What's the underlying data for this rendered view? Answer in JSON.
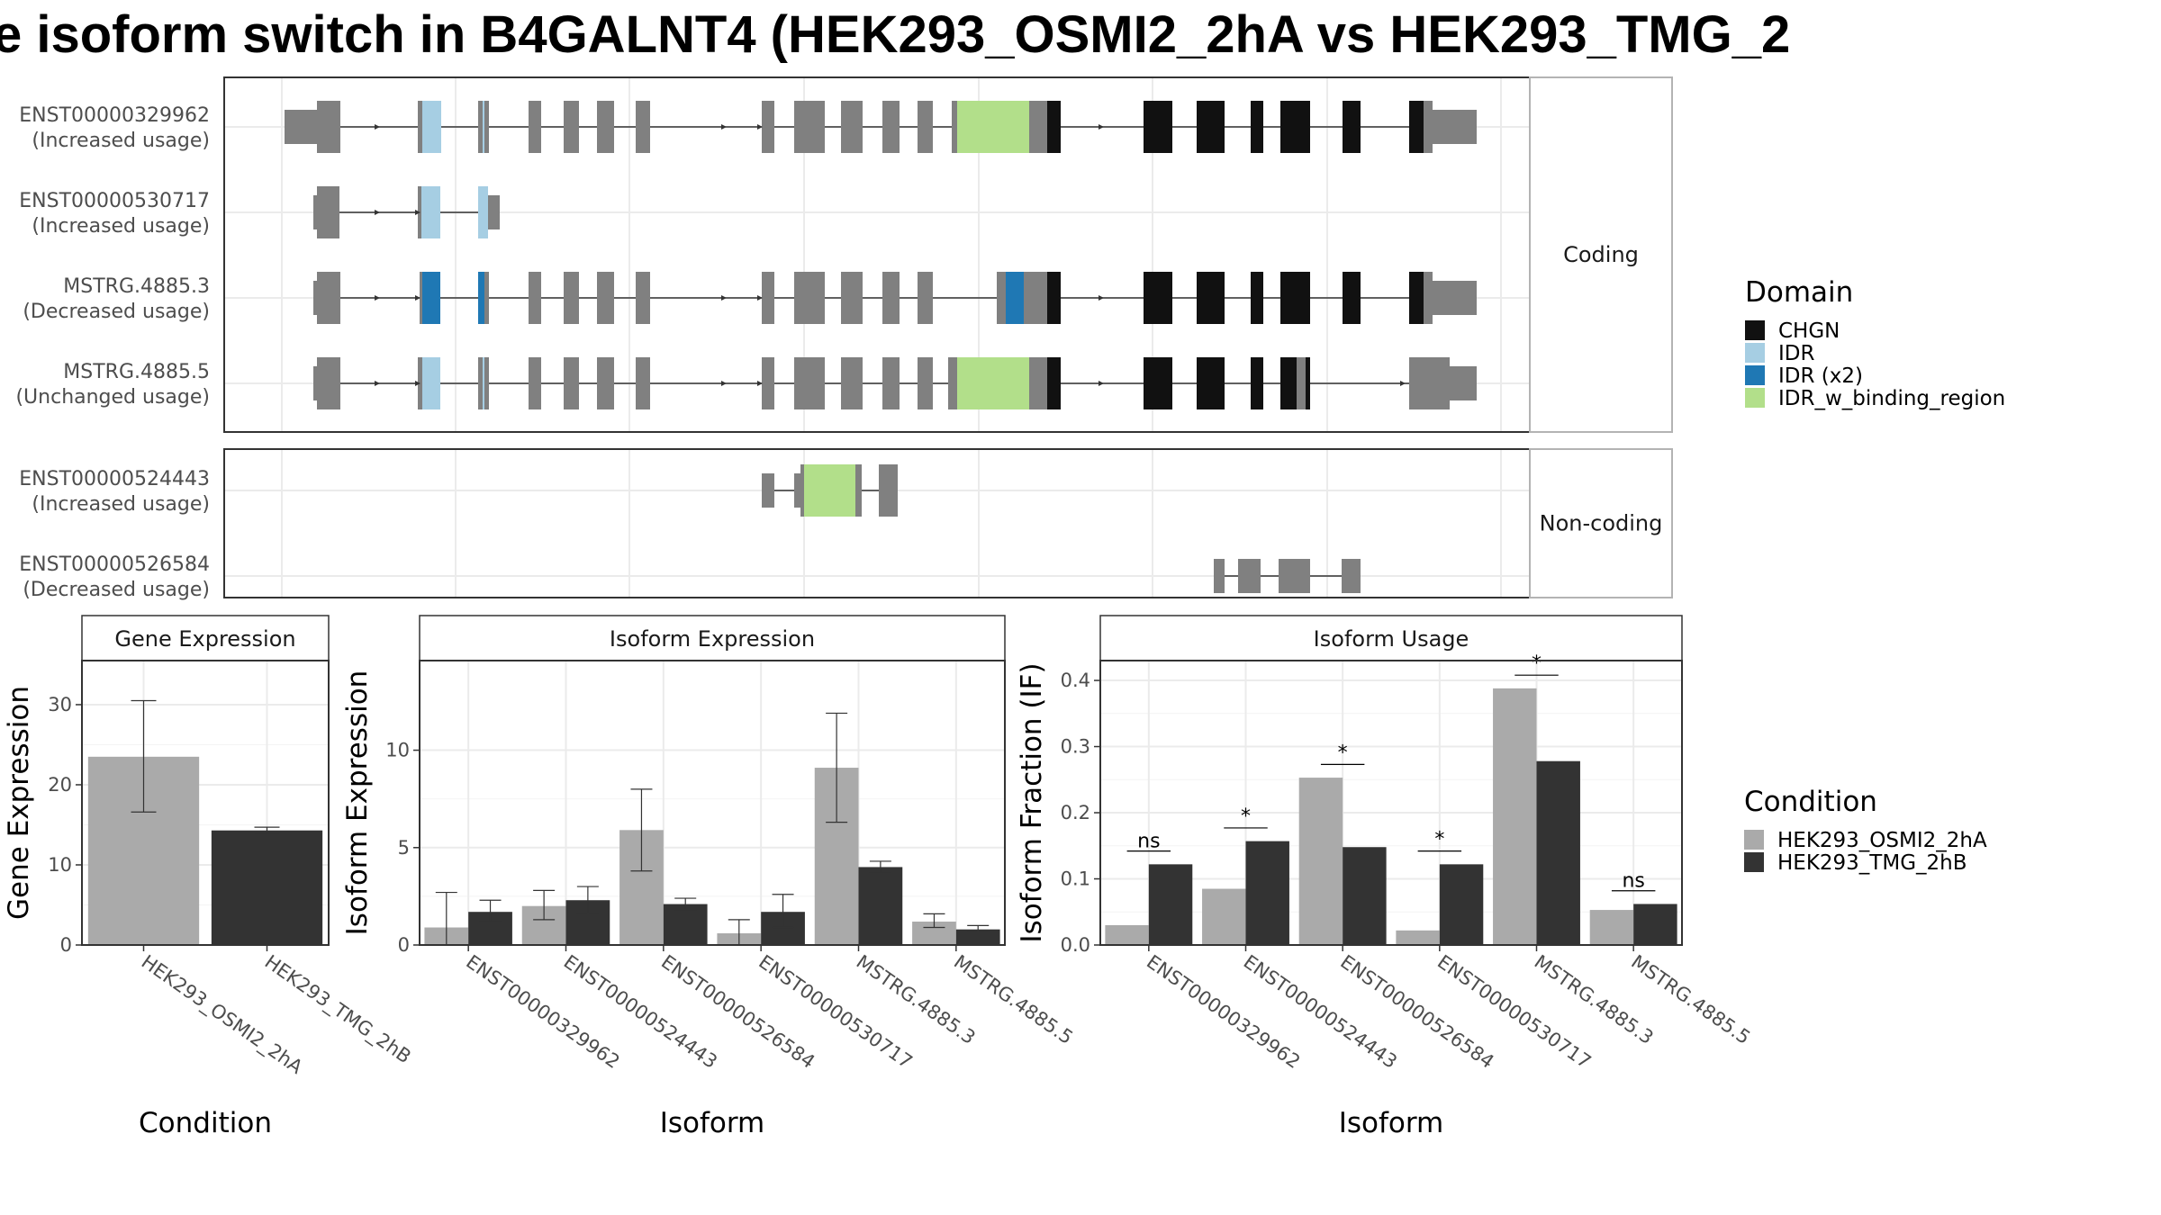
{
  "title": "e isoform switch in B4GALNT4 (HEK293_OSMI2_2hA vs HEK293_TMG_2",
  "colors": {
    "exon": "#808080",
    "CHGN": "#111111",
    "IDR": "#a6cee3",
    "IDR (x2)": "#1f78b4",
    "IDR_w_binding_region": "#b2df8a",
    "HEK293_OSMI2_2hA": "#aaaaaa",
    "HEK293_TMG_2hB": "#333333"
  },
  "transcript_panel": {
    "facets": [
      "Coding",
      "Non-coding"
    ],
    "coding": [
      {
        "id": "ENST00000329962",
        "usage": "(Increased usage)"
      },
      {
        "id": "ENST00000530717",
        "usage": "(Increased usage)"
      },
      {
        "id": "MSTRG.4885.3",
        "usage": "(Decreased usage)"
      },
      {
        "id": "MSTRG.4885.5",
        "usage": "(Unchanged usage)"
      }
    ],
    "noncoding": [
      {
        "id": "ENST00000524443",
        "usage": "(Increased usage)"
      },
      {
        "id": "ENST00000526584",
        "usage": "(Decreased usage)"
      }
    ]
  },
  "legend_domain": {
    "title": "Domain",
    "items": [
      "CHGN",
      "IDR",
      "IDR (x2)",
      "IDR_w_binding_region"
    ]
  },
  "legend_condition": {
    "title": "Condition",
    "items": [
      "HEK293_OSMI2_2hA",
      "HEK293_TMG_2hB"
    ]
  },
  "chart_data": [
    {
      "type": "bar",
      "title": "Gene Expression",
      "xlabel": "Condition",
      "ylabel": "Gene Expression",
      "ylim": [
        0,
        35.5
      ],
      "yticks": [
        0,
        10,
        20,
        30
      ],
      "categories": [
        "HEK293_OSMI2_2hA",
        "HEK293_TMG_2hB"
      ],
      "values": [
        23.5,
        14.3
      ],
      "err_low": [
        16.6,
        13.9
      ],
      "err_high": [
        30.5,
        14.7
      ]
    },
    {
      "type": "bar",
      "title": "Isoform Expression",
      "xlabel": "Isoform",
      "ylabel": "Isoform Expression",
      "ylim": [
        0,
        14.6
      ],
      "yticks": [
        0,
        5,
        10
      ],
      "categories": [
        "ENST00000329962",
        "ENST00000524443",
        "ENST00000526584",
        "ENST00000530717",
        "MSTRG.4885.3",
        "MSTRG.4885.5"
      ],
      "series": [
        {
          "name": "HEK293_OSMI2_2hA",
          "values": [
            0.9,
            2.0,
            5.9,
            0.6,
            9.1,
            1.2
          ],
          "err_low": [
            0.0,
            1.3,
            3.8,
            0.0,
            6.3,
            0.9
          ],
          "err_high": [
            2.7,
            2.8,
            8.0,
            1.3,
            11.9,
            1.6
          ]
        },
        {
          "name": "HEK293_TMG_2hB",
          "values": [
            1.7,
            2.3,
            2.1,
            1.7,
            4.0,
            0.8
          ],
          "err_low": [
            1.2,
            1.6,
            1.8,
            0.9,
            3.7,
            0.7
          ],
          "err_high": [
            2.3,
            3.0,
            2.4,
            2.6,
            4.3,
            1.0
          ]
        }
      ]
    },
    {
      "type": "bar",
      "title": "Isoform Usage",
      "xlabel": "Isoform",
      "ylabel": "Isoform Fraction (IF)",
      "ylim": [
        0,
        0.43
      ],
      "yticks": [
        "0.0",
        "0.1",
        "0.2",
        "0.3",
        "0.4"
      ],
      "categories": [
        "ENST00000329962",
        "ENST00000524443",
        "ENST00000526584",
        "ENST00000530717",
        "MSTRG.4885.3",
        "MSTRG.4885.5"
      ],
      "series": [
        {
          "name": "HEK293_OSMI2_2hA",
          "values": [
            0.03,
            0.085,
            0.253,
            0.022,
            0.388,
            0.053
          ]
        },
        {
          "name": "HEK293_TMG_2hB",
          "values": [
            0.122,
            0.157,
            0.148,
            0.122,
            0.278,
            0.062
          ]
        }
      ],
      "significance": [
        {
          "label": "ns",
          "y": 0.142
        },
        {
          "label": "*",
          "y": 0.177
        },
        {
          "label": "*",
          "y": 0.273
        },
        {
          "label": "*",
          "y": 0.142
        },
        {
          "label": "*",
          "y": 0.408
        },
        {
          "label": "ns",
          "y": 0.082
        }
      ]
    }
  ]
}
